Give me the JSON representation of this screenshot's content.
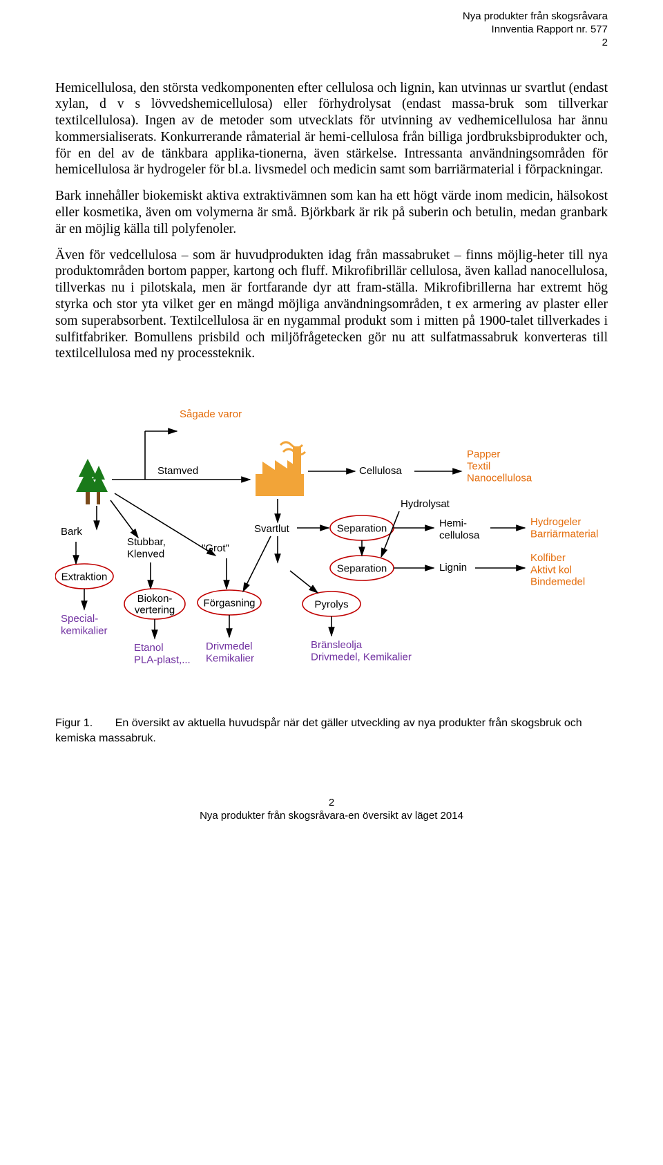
{
  "header": {
    "line1": "Nya produkter från skogsråvara",
    "line2": "Innventia Rapport nr. 577",
    "line3": "2"
  },
  "paragraphs": {
    "p1": "Hemicellulosa, den största vedkomponenten efter cellulosa och lignin, kan utvinnas ur svartlut (endast xylan, d v s lövvedshemicellulosa) eller förhydrolysat (endast massa-bruk som tillverkar textilcellulosa). Ingen av de metoder som utvecklats för utvinning av vedhemicellulosa har ännu kommersialiserats. Konkurrerande råmaterial är hemi-cellulosa från billiga jordbruksbiprodukter och, för en del av de tänkbara applika-tionerna, även stärkelse. Intressanta användningsområden för hemicellulosa är hydrogeler för bl.a. livsmedel och medicin samt som barriärmaterial i förpackningar.",
    "p2": "Bark innehåller biokemiskt aktiva extraktivämnen som kan ha ett högt värde inom medicin, hälsokost eller kosmetika, även om volymerna är små. Björkbark är rik på suberin och betulin, medan granbark är en möjlig källa till polyfenoler.",
    "p3": "Även för vedcellulosa – som är huvudprodukten idag från massabruket – finns möjlig-heter till nya produktområden bortom papper, kartong och fluff. Mikrofibrillär cellulosa, även kallad nanocellulosa, tillverkas nu i pilotskala, men är fortfarande dyr att fram-ställa. Mikrofibrillerna har extremt hög styrka och stor yta vilket ger en mängd möjliga användningsområden, t ex armering av plaster eller som superabsorbent. Textilcellulosa är en nygammal produkt som i mitten på 1900-talet tillverkades i sulfitfabriker. Bomullens prisbild och miljöfrågetecken gör nu att sulfatmassabruk konverteras till textilcellulosa med ny processteknik."
  },
  "caption": {
    "label": "Figur 1.",
    "text": "En översikt av aktuella huvudspår när det gäller utveckling av nya produkter från skogsbruk och kemiska massabruk."
  },
  "footer": {
    "pagenum": "2",
    "line": "Nya produkter från skogsråvara-en översikt av läget 2014"
  },
  "diagram": {
    "colors": {
      "black": "#000000",
      "process_fill": "#ffffff",
      "process_stroke": "#c00000",
      "output_purple": "#7030a0",
      "output_orange": "#e46c0a",
      "arrow": "#000000",
      "tree_green": "#1a7a1a",
      "tree_trunk": "#7a4a1a",
      "factory": "#f2a438"
    },
    "font_size_label": 15,
    "labels": {
      "sagade_varor": "Sågade varor",
      "stamved": "Stamved",
      "bark": "Bark",
      "svartlut": "Svartlut",
      "cellulosa": "Cellulosa",
      "hydrolysat": "Hydrolysat",
      "hemi_cellulosa": "Hemi-\ncellulosa",
      "lignin": "Lignin",
      "grot": "\"Grot\"",
      "stubbar_klenved": "Stubbar,\nKlenved"
    },
    "processes": {
      "extraktion": "Extraktion",
      "biokonvertering": "Biokon-\nvertering",
      "forgasning": "Förgasning",
      "separation1": "Separation",
      "separation2": "Separation",
      "pyrolys": "Pyrolys"
    },
    "outputs": {
      "special_kemikalier": "Special-\nkemikalier",
      "etanol": "Etanol\nPLA-plast,...",
      "drivmedel_kemikalier": "Drivmedel\nKemikalier",
      "bransleolja": "Bränsleolja\nDrivmedel, Kemikalier",
      "papper_textil_nano": "Papper\nTextil\nNanocellulosa",
      "hydrogeler_barrier": "Hydrogeler\nBarriärmaterial",
      "kolfiber": "Kolfiber\nAktivt kol\nBindemedel"
    }
  }
}
